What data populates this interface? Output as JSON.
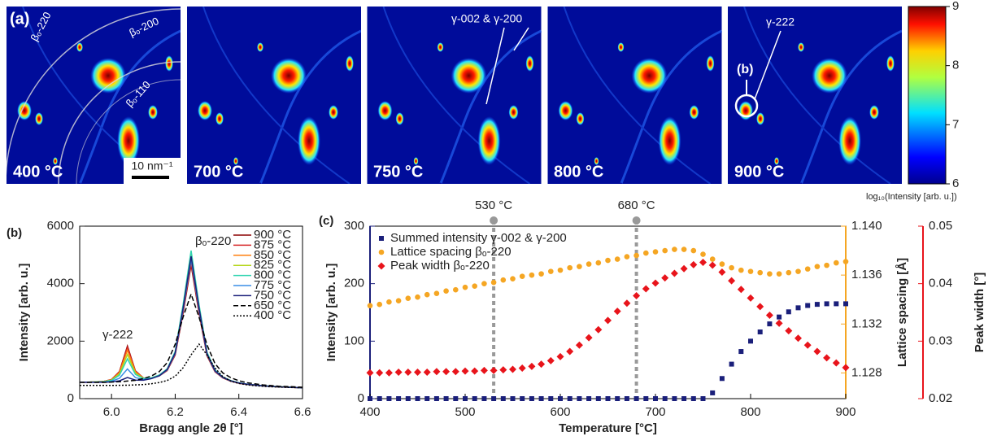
{
  "panel_a": {
    "label": "(a)",
    "temperatures": [
      "400 °C",
      "700 °C",
      "750 °C",
      "800 °C",
      "900 °C"
    ],
    "ring_labels": [
      "βₒ-220",
      "βₒ-200",
      "βₒ-110"
    ],
    "scale_bar": "10 nm⁻¹",
    "annotations": [
      "γ-002 & γ-200",
      "γ-222",
      "(b)"
    ],
    "colorbar": {
      "lim": [
        6,
        9
      ],
      "ticks": [
        6,
        7,
        8,
        9
      ],
      "label": "log₁₀(Intensity [arb. u.])"
    }
  },
  "chart_data": [
    {
      "type": "line",
      "label": "(b)",
      "x_label": "Bragg angle 2θ [°]",
      "y_label": "Intensity [arb. u.]",
      "xlim": [
        5.9,
        6.6
      ],
      "xticks": [
        {
          "value": 6,
          "label": "6.0"
        },
        6.2,
        6.4,
        6.6
      ],
      "ylim": [
        0,
        6000
      ],
      "yticks": [
        0,
        2000,
        4000,
        6000
      ],
      "annotations": [
        {
          "text": "βₒ-220",
          "color": "#e8141b"
        },
        {
          "text": "γ-222",
          "color": "#1a1f7a"
        }
      ],
      "x": [
        5.9,
        5.925,
        5.95,
        5.975,
        6,
        6.025,
        6.05,
        6.075,
        6.1,
        6.125,
        6.15,
        6.175,
        6.2,
        6.225,
        6.25,
        6.275,
        6.3,
        6.325,
        6.35,
        6.375,
        6.4,
        6.425,
        6.45,
        6.475,
        6.5,
        6.525,
        6.55,
        6.575,
        6.6
      ],
      "series": [
        {
          "name": "900 °C",
          "color": "#8b0000",
          "dash": "solid",
          "values": [
            571,
            568,
            584,
            601,
            664,
            945,
            1829,
            968,
            720,
            714,
            793,
            977,
            1516,
            2979,
            4652,
            2965,
            1488,
            935,
            718,
            606,
            536,
            495,
            467,
            444,
            424,
            409,
            397,
            386,
            375
          ]
        },
        {
          "name": "875 °C",
          "color": "#d62728",
          "dash": "solid",
          "values": [
            572,
            569,
            584,
            599,
            661,
            931,
            1781,
            956,
            719,
            717,
            799,
            989,
            1541,
            3039,
            4752,
            3025,
            1513,
            947,
            725,
            611,
            539,
            498,
            469,
            445,
            425,
            409,
            398,
            387,
            376
          ]
        },
        {
          "name": "850 °C",
          "color": "#ff7f0e",
          "dash": "solid",
          "values": [
            573,
            570,
            585,
            598,
            655,
            904,
            1685,
            930,
            717,
            723,
            812,
            1013,
            1591,
            3159,
            4952,
            3145,
            1563,
            971,
            739,
            620,
            545,
            502,
            473,
            448,
            427,
            411,
            400,
            388,
            377
          ]
        },
        {
          "name": "825 °C",
          "color": "#b5d61a",
          "dash": "solid",
          "values": [
            573,
            571,
            582,
            595,
            644,
            860,
            1536,
            887,
            708,
            723,
            816,
            1025,
            1616,
            3219,
            5052,
            3205,
            1588,
            983,
            746,
            624,
            548,
            504,
            474,
            449,
            428,
            412,
            400,
            389,
            377
          ]
        },
        {
          "name": "800 °C",
          "color": "#2fd4b0",
          "dash": "solid",
          "values": [
            574,
            571,
            581,
            591,
            633,
            816,
            1388,
            844,
            699,
            723,
            821,
            1037,
            1641,
            3279,
            5152,
            3265,
            1613,
            995,
            753,
            629,
            551,
            506,
            476,
            450,
            429,
            413,
            401,
            389,
            378
          ]
        },
        {
          "name": "775 °C",
          "color": "#3a8ee6",
          "dash": "solid",
          "values": [
            572,
            569,
            574,
            578,
            602,
            707,
            1033,
            733,
            662,
            699,
            795,
            1001,
            1566,
            3099,
            4852,
            3085,
            1538,
            959,
            732,
            615,
            542,
            500,
            471,
            446,
            426,
            410,
            399,
            387,
            376
          ]
        },
        {
          "name": "750 °C",
          "color": "#1a1f7a",
          "dash": "solid",
          "values": [
            573,
            570,
            570,
            570,
            579,
            619,
            735,
            645,
            641,
            695,
            797,
            1013,
            1591,
            3159,
            4952,
            3145,
            1563,
            971,
            739,
            620,
            545,
            502,
            473,
            448,
            427,
            411,
            400,
            388,
            377
          ]
        },
        {
          "name": "650 °C",
          "color": "#000000",
          "dash": "dashed",
          "values": [
            565,
            565,
            566,
            566,
            576,
            586,
            612,
            638,
            696,
            786,
            940,
            1254,
            1888,
            2842,
            3636,
            2830,
            1864,
            1218,
            892,
            726,
            624,
            554,
            516,
            478,
            456,
            434,
            422,
            409,
            397
          ]
        },
        {
          "name": "400 °C",
          "color": "#000000",
          "dash": "dotted",
          "values": [
            458,
            458,
            458,
            458,
            458,
            463,
            467,
            479,
            491,
            518,
            560,
            632,
            779,
            1076,
            1523,
            1895,
            1517,
            1064,
            761,
            608,
            530,
            482,
            449,
            431,
            413,
            403,
            392,
            386,
            380
          ]
        }
      ]
    },
    {
      "type": "scatter",
      "label": "(c)",
      "x_label": "Temperature [°C]",
      "y_label": "Intensity [arb. u.]",
      "y2_label": "Lattice spacing [Å]",
      "y3_label": "Peak width [°]",
      "xlim": [
        400,
        900
      ],
      "xticks": [
        400,
        500,
        600,
        700,
        800,
        900
      ],
      "ylim": [
        0,
        300
      ],
      "yticks": [
        0,
        100,
        200,
        300
      ],
      "y2lim": [
        1.1259,
        1.14
      ],
      "y2ticks": [
        1.128,
        1.132,
        1.136,
        {
          "value": 1.14,
          "label": "1.140"
        }
      ],
      "y3lim": [
        0.02,
        0.05
      ],
      "y3ticks": [
        0.02,
        0.03,
        0.04,
        0.05
      ],
      "vlines": [
        {
          "x": 530,
          "label": "530 °C"
        },
        {
          "x": 680,
          "label": "680 °C"
        }
      ],
      "x": [
        400,
        410,
        420,
        430,
        440,
        450,
        460,
        470,
        480,
        490,
        500,
        510,
        520,
        530,
        540,
        550,
        560,
        570,
        580,
        590,
        600,
        610,
        620,
        630,
        640,
        650,
        660,
        670,
        680,
        690,
        700,
        710,
        720,
        730,
        740,
        750,
        760,
        770,
        780,
        790,
        800,
        810,
        820,
        830,
        840,
        850,
        860,
        870,
        880,
        890,
        900
      ],
      "series": [
        {
          "name": "Summed intensity γ-002 & γ-200",
          "color": "#1a1f7a",
          "axis": "y",
          "marker": "square",
          "values": [
            0,
            0,
            0,
            0,
            0,
            0,
            0,
            0,
            0,
            0,
            0,
            0,
            0,
            0,
            0,
            0,
            0,
            0,
            0,
            0,
            0,
            0,
            0,
            0,
            0,
            0,
            0,
            0,
            0,
            0,
            0,
            0,
            0,
            0,
            0,
            0,
            10,
            35,
            60,
            82,
            100,
            116,
            130,
            142,
            151,
            158,
            162,
            164,
            165,
            165,
            165
          ]
        },
        {
          "name": "Lattice spacing βₒ-220",
          "color": "#f5a623",
          "axis": "y2",
          "marker": "circle",
          "values": [
            1.1335,
            1.1336,
            1.1338,
            1.1339,
            1.1341,
            1.1342,
            1.1344,
            1.1345,
            1.1347,
            1.1348,
            1.135,
            1.1351,
            1.1353,
            1.1354,
            1.1356,
            1.1357,
            1.1359,
            1.136,
            1.1361,
            1.1363,
            1.1364,
            1.1366,
            1.1367,
            1.1369,
            1.137,
            1.1372,
            1.1373,
            1.1375,
            1.1376,
            1.1378,
            1.1379,
            1.138,
            1.1381,
            1.1381,
            1.138,
            1.1377,
            1.1373,
            1.1369,
            1.1366,
            1.1364,
            1.1363,
            1.1362,
            1.1361,
            1.1361,
            1.1362,
            1.1363,
            1.1365,
            1.1367,
            1.1368,
            1.137,
            1.1371
          ]
        },
        {
          "name": "Peak width βₒ-220",
          "color": "#e8141b",
          "axis": "y3",
          "marker": "diamond",
          "values": [
            0.0245,
            0.0245,
            0.0245,
            0.0246,
            0.0246,
            0.0246,
            0.0246,
            0.0247,
            0.0247,
            0.0247,
            0.0248,
            0.0248,
            0.0249,
            0.0249,
            0.025,
            0.0251,
            0.0253,
            0.0256,
            0.026,
            0.0266,
            0.0273,
            0.0282,
            0.0293,
            0.0306,
            0.032,
            0.0336,
            0.0352,
            0.0366,
            0.0379,
            0.0391,
            0.0401,
            0.041,
            0.0418,
            0.0426,
            0.0433,
            0.0437,
            0.0432,
            0.042,
            0.0405,
            0.039,
            0.0375,
            0.036,
            0.0345,
            0.0331,
            0.0318,
            0.0305,
            0.0293,
            0.0282,
            0.0271,
            0.0262,
            0.0254
          ]
        }
      ]
    }
  ]
}
